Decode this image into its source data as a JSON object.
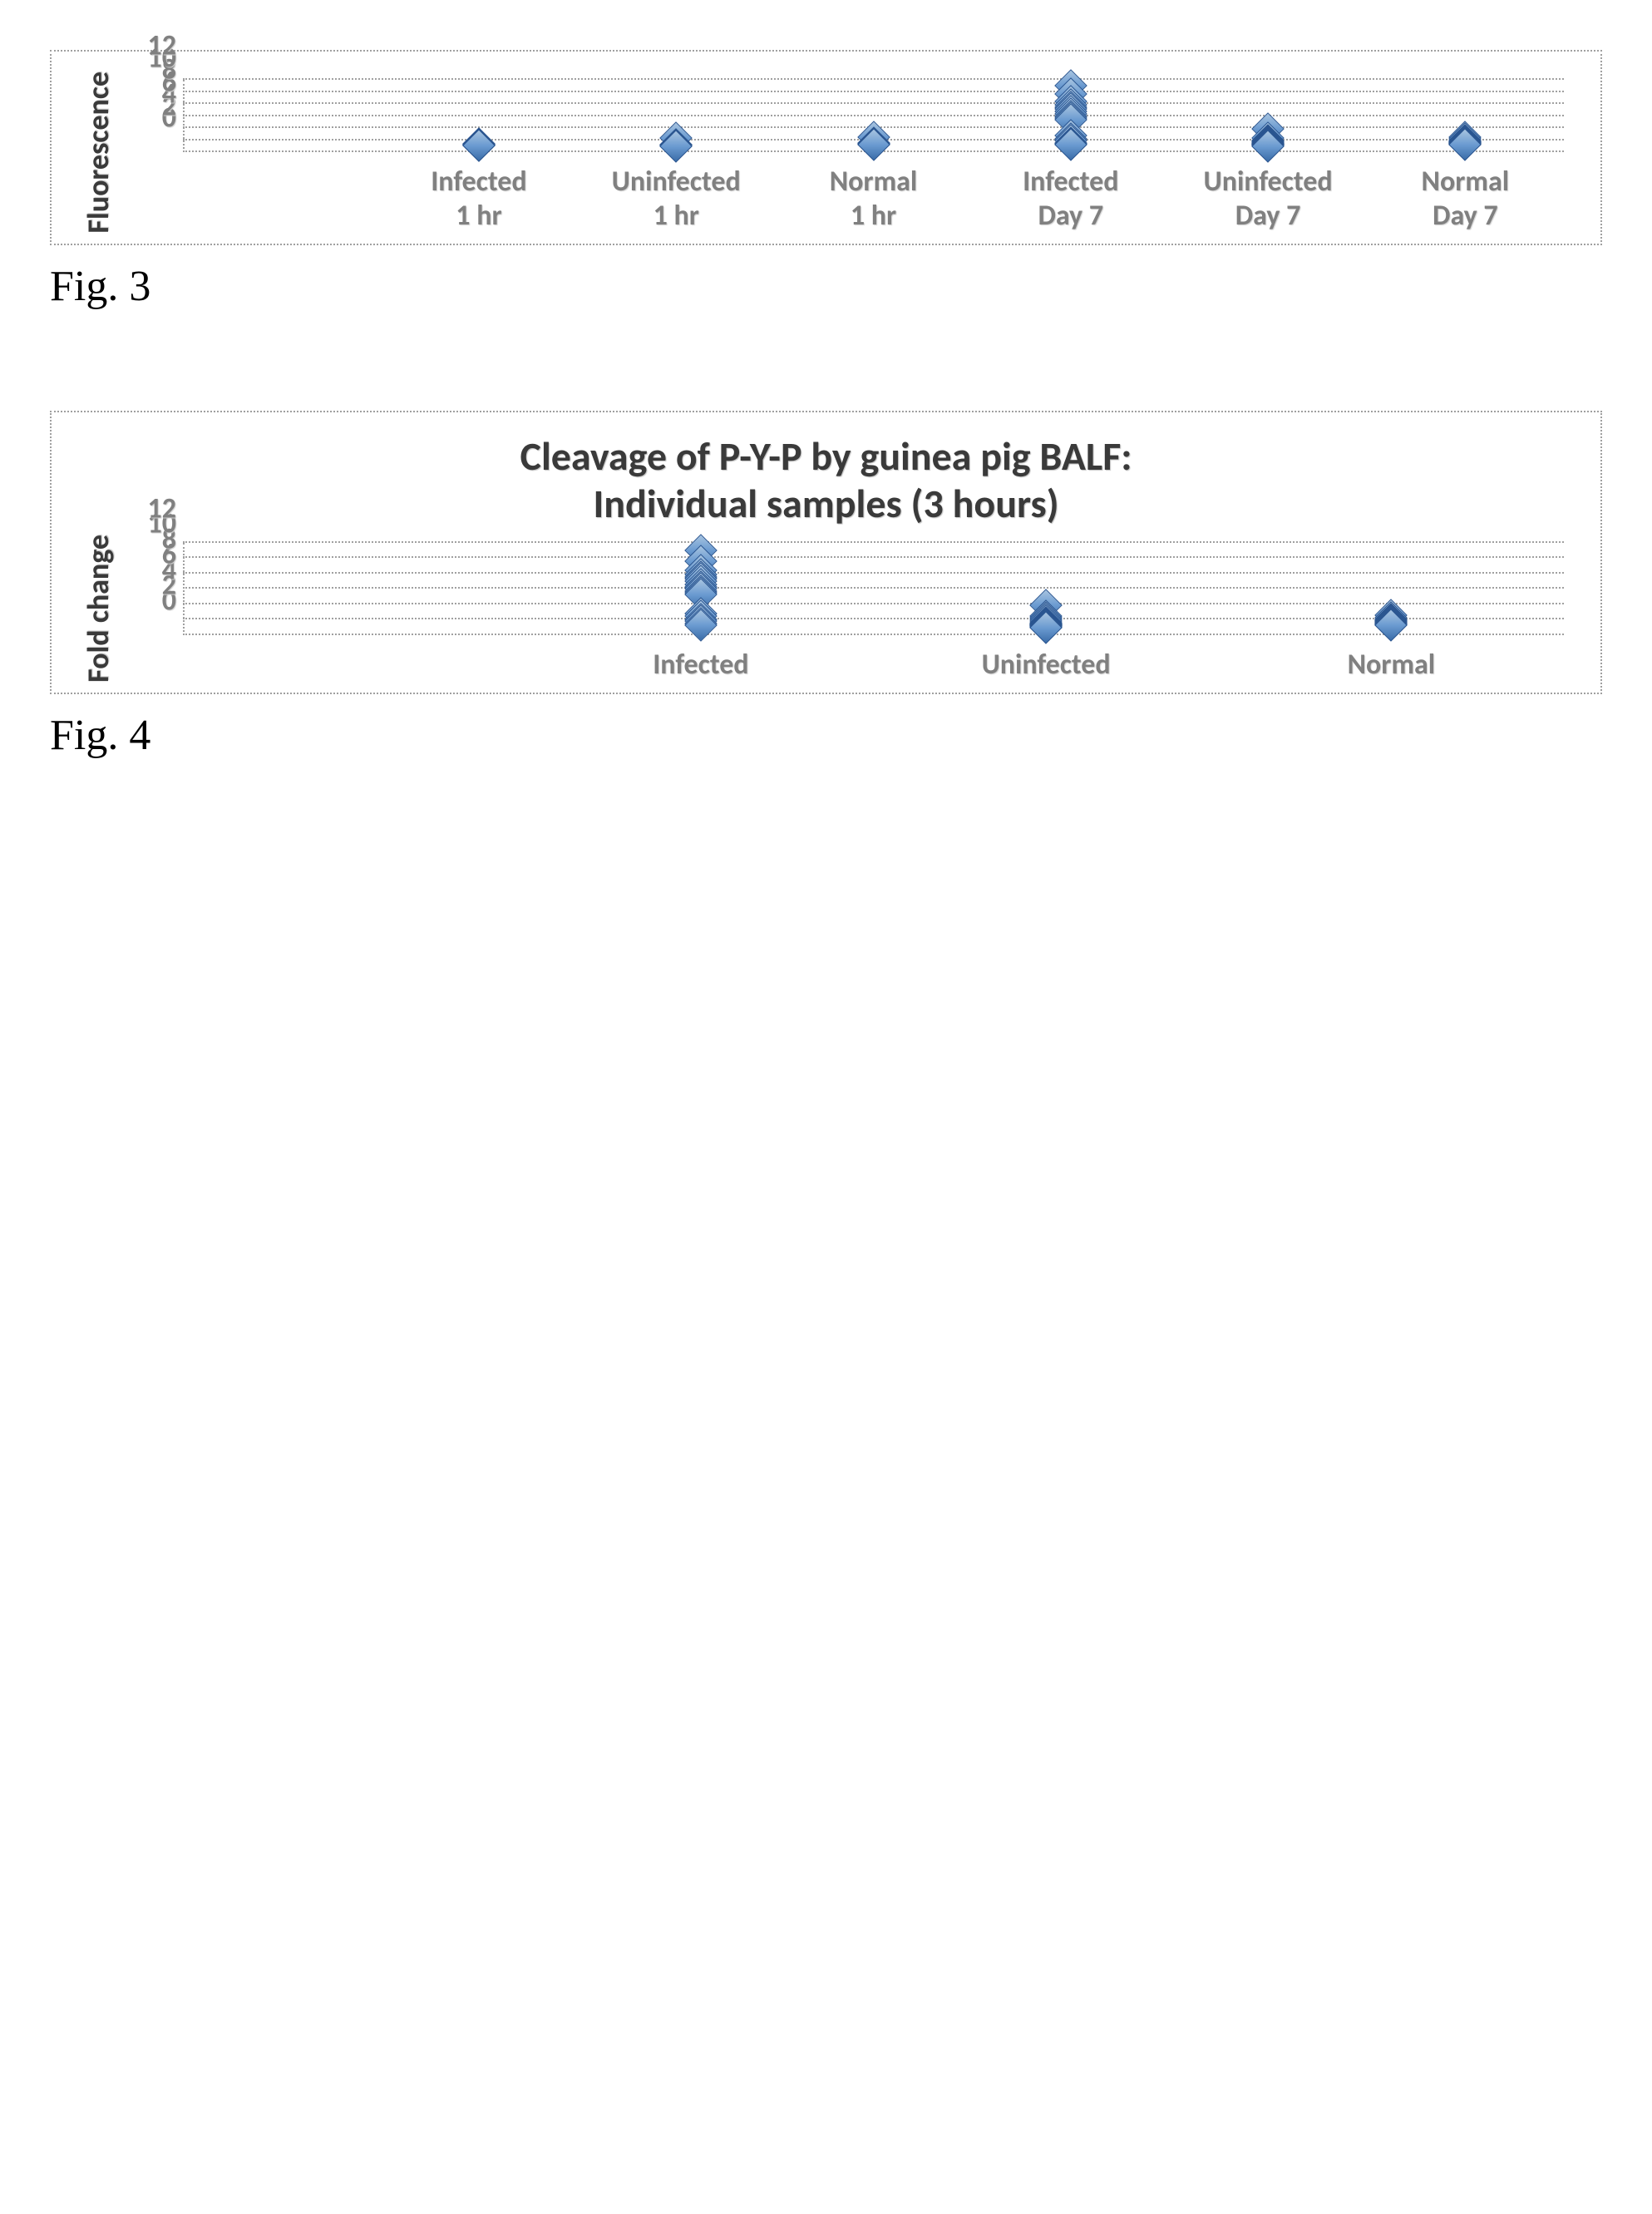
{
  "chart1": {
    "type": "scatter",
    "title": "",
    "y_label": "Fluorescence",
    "y_min": 0,
    "y_max": 12,
    "y_ticks": [
      0,
      2,
      4,
      6,
      8,
      10,
      12
    ],
    "categories": [
      "Infected\n1 hr",
      "Uninfected\n1 hr",
      "Normal\n1 hr",
      "Infected\nDay 7",
      "Uninfected\nDay 7",
      "Normal\nDay 7"
    ],
    "series_color": "#6b9bd1",
    "marker_border": "#2a5590",
    "grid_color": "#a0a0a0",
    "background": "#ffffff",
    "data": {
      "Infected 1 hr": [
        1.3,
        1.35,
        1.1,
        1.25,
        1.2,
        1.15,
        1.3,
        1.4,
        1.05
      ],
      "Uninfected 1 hr": [
        2.4,
        1.0,
        1.2,
        1.15,
        1.3
      ],
      "Normal 1 hr": [
        2.5,
        1.5,
        1.4,
        1.3,
        1.45
      ],
      "Infected Day 7": [
        11.0,
        9.6,
        8.4,
        7.8,
        7.5,
        7.2,
        6.8,
        6.4,
        6.0,
        5.6,
        5.4,
        2.7,
        2.0,
        2.2,
        1.5,
        1.4,
        1.3
      ],
      "Uninfected Day 7": [
        3.9,
        2.3,
        2.0,
        1.8,
        1.6,
        1.5,
        1.4,
        1.3,
        1.2,
        1.1,
        1.0,
        1.35,
        1.45,
        1.25
      ],
      "Normal Day 7": [
        2.5,
        2.2,
        2.0,
        1.8,
        1.7,
        1.6,
        1.5,
        1.4,
        1.3,
        1.45,
        1.55
      ]
    },
    "caption": "Fig. 3"
  },
  "chart2": {
    "type": "scatter",
    "title": "Cleavage of P-Y-P by guinea pig BALF:\nIndividual samples (3 hours)",
    "y_label": "Fold change",
    "y_min": 0,
    "y_max": 12,
    "y_ticks": [
      0,
      2,
      4,
      6,
      8,
      10,
      12
    ],
    "categories": [
      "Infected",
      "Uninfected",
      "Normal"
    ],
    "series_color": "#6b9bd1",
    "marker_border": "#2a5590",
    "grid_color": "#a0a0a0",
    "background": "#ffffff",
    "data": {
      "Infected": [
        11.0,
        9.6,
        8.4,
        7.9,
        7.6,
        7.3,
        7.0,
        6.6,
        6.3,
        6.0,
        5.7,
        5.5,
        5.3,
        2.8,
        2.5,
        2.0,
        1.8,
        1.5,
        1.3
      ],
      "Uninfected": [
        3.9,
        2.5,
        2.3,
        2.0,
        1.8,
        1.6,
        1.5,
        1.4,
        1.3,
        1.2,
        1.1,
        1.0,
        1.35,
        1.45,
        1.25
      ],
      "Normal": [
        2.6,
        2.3,
        2.1,
        1.9,
        1.8,
        1.7,
        1.6,
        1.5,
        1.4,
        1.3,
        1.45
      ]
    },
    "caption": "Fig. 4"
  }
}
